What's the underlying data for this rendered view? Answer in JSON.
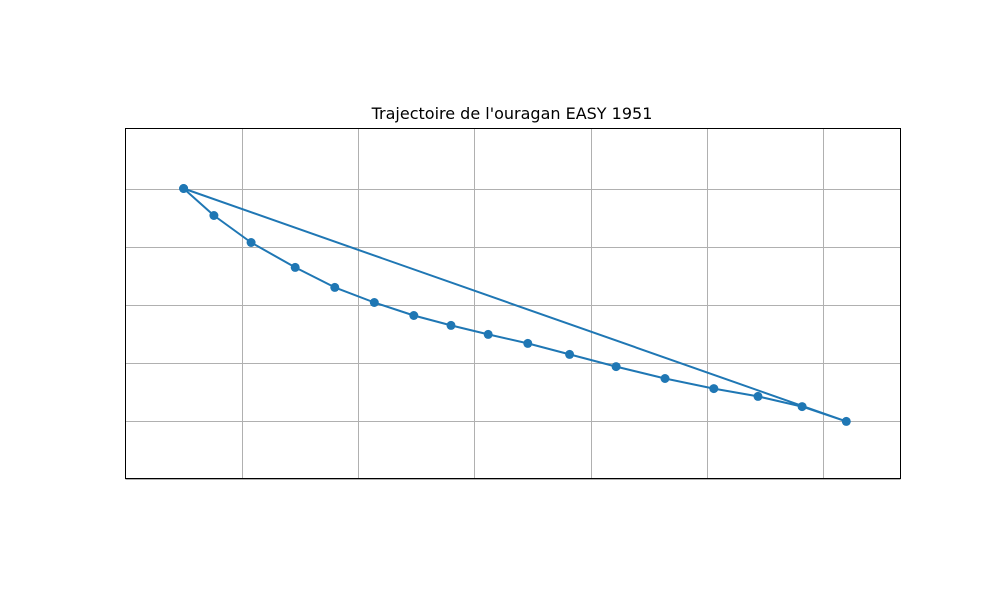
{
  "chart_data": {
    "type": "line",
    "title": "Trajectoire de l'ouragan EASY 1951",
    "xlabel": "",
    "ylabel": "",
    "xlim": [
      0,
      33.33
    ],
    "ylim": [
      0,
      12.07
    ],
    "grid": true,
    "series": [
      {
        "color": "#1f77b4",
        "marker": "circle",
        "x": [
          2.5,
          3.8,
          5.4,
          7.3,
          9.0,
          10.7,
          12.4,
          14.0,
          15.6,
          17.3,
          19.1,
          21.1,
          23.2,
          25.3,
          27.2,
          29.1,
          31.0,
          2.5
        ],
        "y": [
          10.0,
          9.07,
          8.14,
          7.28,
          6.59,
          6.07,
          5.62,
          5.28,
          4.97,
          4.66,
          4.28,
          3.86,
          3.45,
          3.1,
          2.83,
          2.48,
          1.97,
          10.0
        ]
      }
    ]
  }
}
